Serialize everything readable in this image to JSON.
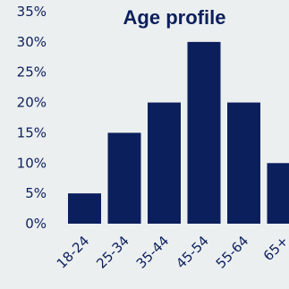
{
  "chart_data": {
    "type": "bar",
    "title": "Age profile",
    "categories": [
      "18-24",
      "25-34",
      "35-44",
      "45-54",
      "55-64",
      "65+"
    ],
    "values": [
      5,
      15,
      20,
      30,
      20,
      10
    ],
    "yticks": [
      "0%",
      "5%",
      "10%",
      "15%",
      "20%",
      "25%",
      "30%",
      "35%"
    ],
    "ylim": [
      0,
      35
    ],
    "xlabel": "",
    "ylabel": "",
    "grid": false,
    "bar_color": "#0b1f5c",
    "text_color": "#0b1f5c"
  }
}
